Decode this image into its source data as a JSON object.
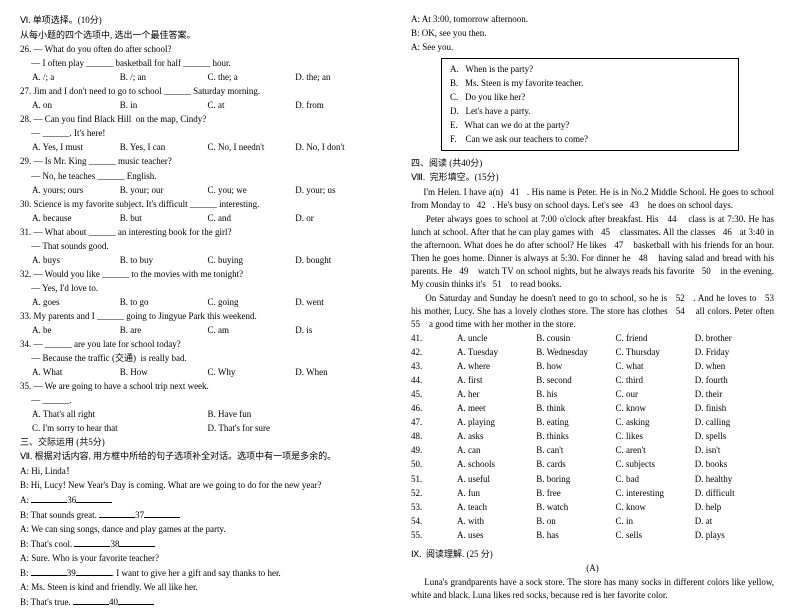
{
  "left": {
    "s6_title": "Ⅵ. 单项选择。(10分)",
    "s6_sub": "从每小题的四个选项中, 选出一个最佳答案。",
    "q26a": "26. — What do you often do after school?",
    "q26b": "     — I often play ______ basketball for half ______ hour.",
    "q26o": [
      "A. /; a",
      "B. /; an",
      "C. the; a",
      "D. the; an"
    ],
    "q27a": "27. Jim and I don't need to go to school ______ Saturday morning.",
    "q27o": [
      "A. on",
      "B. in",
      "C. at",
      "D. from"
    ],
    "q28a": "28. — Can you find Black Hill  on the map, Cindy?",
    "q28b": "     — ______. It's here!",
    "q28o": [
      "A. Yes, I must",
      "B. Yes, I can",
      "C. No, I needn't",
      "D. No, I don't"
    ],
    "q29a": "29. — Is Mr. King ______ music teacher?",
    "q29b": "     — No, he teaches ______ English.",
    "q29o": [
      "A. yours; ours",
      "B. your; our",
      "C. you; we",
      "D. your; us"
    ],
    "q30a": "30. Science is my favorite subject. It's difficult ______ interesting.",
    "q30o": [
      "A. because",
      "B. but",
      "C. and",
      "D. or"
    ],
    "q31a": "31. — What about ______ an interesting book for the girl?",
    "q31b": "     — That sounds good.",
    "q31o": [
      "A. buys",
      "B. to buy",
      "C. buying",
      "D. bought"
    ],
    "q32a": "32. — Would you like ______ to the movies with me tonight?",
    "q32b": "     — Yes, I'd love to.",
    "q32o": [
      "A. goes",
      "B. to go",
      "C. going",
      "D. went"
    ],
    "q33a": "33. My parents and I ______ going to Jingyue Park this weekend.",
    "q33o": [
      "A. be",
      "B. are",
      "C. am",
      "D. is"
    ],
    "q34a": "34. — ______ are you late for school today?",
    "q34b": "     — Because the traffic (交通)  is really bad.",
    "q34o": [
      "A. What",
      "B. How",
      "C. Why",
      "D. When"
    ],
    "q35a": "35. — We are going to have a school trip next week.",
    "q35b": "     — ______.",
    "q35o1": [
      "A. That's all right",
      "B. Have fun"
    ],
    "q35o2": [
      "C. I'm sorry to hear that",
      "D. That's for sure"
    ],
    "s7_title1": "三、交际运用 (共5分)",
    "s7_title2": "Ⅶ. 根据对话内容, 用方框中所给的句子选项补全对话。选项中有一项是多余的。",
    "d1": "A: Hi, Linda！",
    "d2": "B: Hi, Lucy! New Year's Day is coming. What are we going to do for the new year?",
    "d3": "A:    36   ",
    "d4": "B: That sounds great.    37   ",
    "d5": "A: We can sing songs, dance and play games at the party.",
    "d6": "B: That's cool.    38   ",
    "d7": "A: Sure. Who is your favorite teacher?",
    "d8": "B:    39   . I want to give her a gift and say thanks to her.",
    "d9": "A: Ms. Steen is kind and friendly. We all like her.",
    "d10": "B: That's true.    40   "
  },
  "right": {
    "r1": "A: At 3:00, tomorrow afternoon.",
    "r2": "B: OK, see you then.",
    "r3": "A: See you.",
    "box": [
      "A.   When is the party?",
      "B.   Ms. Steen is my favorite teacher.",
      "C.   Do you like her?",
      "D.   Let's have a party.",
      "E.   What can we do at the party?",
      "F.    Can we ask our teachers to come?"
    ],
    "s4": "四、阅读 (共40分)",
    "s8": "Ⅷ.  完形填空。(15分)",
    "p1": "     I'm Helen. I have a(n)   41   . His name is Peter. He is in No.2 Middle School. He goes to school from Monday to   42   . He's busy on school days. Let's see   43    he does on school days.",
    "p2": "     Peter always goes to school at 7:00 o'clock after breakfast. His   44    class is at 7:30. He has lunch at school. After that he can play games with   45    classmates. All the classes   46   at 3:40 in the afternoon. What does he do after school? He likes   47    basketball with his friends for an hour. Then he goes home. Dinner is always at 5:30. For dinner he   48    having salad and bread with his parents. He   49    watch TV on school nights, but he always reads his favorite   50    in the evening. My cousin thinks it's   51    to read books.",
    "p3": "     On Saturday and Sunday he doesn't need to go to school, so he is   52   . And he loves to   53    his mother, Lucy. She has a lovely clothes store. The store has clothes   54    all colors. Peter often   55    a good time with her mother in the store.",
    "cloze": [
      {
        "n": "41.",
        "a": "A. uncle",
        "b": "B. cousin",
        "c": "C. friend",
        "d": "D. brother"
      },
      {
        "n": "42.",
        "a": "A. Tuesday",
        "b": "B. Wednesday",
        "c": "C. Thursday",
        "d": "D. Friday"
      },
      {
        "n": "43.",
        "a": "A. where",
        "b": "B. how",
        "c": "C. what",
        "d": "D. when"
      },
      {
        "n": "44.",
        "a": "A. first",
        "b": "B. second",
        "c": "C. third",
        "d": "D. fourth"
      },
      {
        "n": "45.",
        "a": "A. her",
        "b": "B. his",
        "c": "C. our",
        "d": "D. their"
      },
      {
        "n": "46.",
        "a": "A. meet",
        "b": "B. think",
        "c": "C. know",
        "d": "D. finish"
      },
      {
        "n": "47.",
        "a": "A. playing",
        "b": "B. eating",
        "c": "C. asking",
        "d": "D. calling"
      },
      {
        "n": "48.",
        "a": "A. asks",
        "b": "B. thinks",
        "c": "C. likes",
        "d": "D. spells"
      },
      {
        "n": "49.",
        "a": "A. can",
        "b": "B. can't",
        "c": "C. aren't",
        "d": "D. isn't"
      },
      {
        "n": "50.",
        "a": "A. schools",
        "b": "B. cards",
        "c": "C. subjects",
        "d": "D. books"
      },
      {
        "n": "51.",
        "a": "A. useful",
        "b": "B. boring",
        "c": "C. bad",
        "d": "D. healthy"
      },
      {
        "n": "52.",
        "a": "A. fun",
        "b": "B. free",
        "c": "C. interesting",
        "d": "D. difficult"
      },
      {
        "n": "53.",
        "a": "A. teach",
        "b": "B. watch",
        "c": "C. know",
        "d": "D. help"
      },
      {
        "n": "54.",
        "a": "A. with",
        "b": "B. on",
        "c": "C. in",
        "d": "D. at"
      },
      {
        "n": "55.",
        "a": "A. uses",
        "b": "B. has",
        "c": "C. sells",
        "d": "D. plays"
      }
    ],
    "s9": "Ⅸ.  阅读理解. (25 分)",
    "pA": "(A)",
    "pAtext": "     Luna's grandparents have a sock store. The store has many socks in different colors like yellow, white and black. Luna likes red socks, because red is her favorite color."
  }
}
